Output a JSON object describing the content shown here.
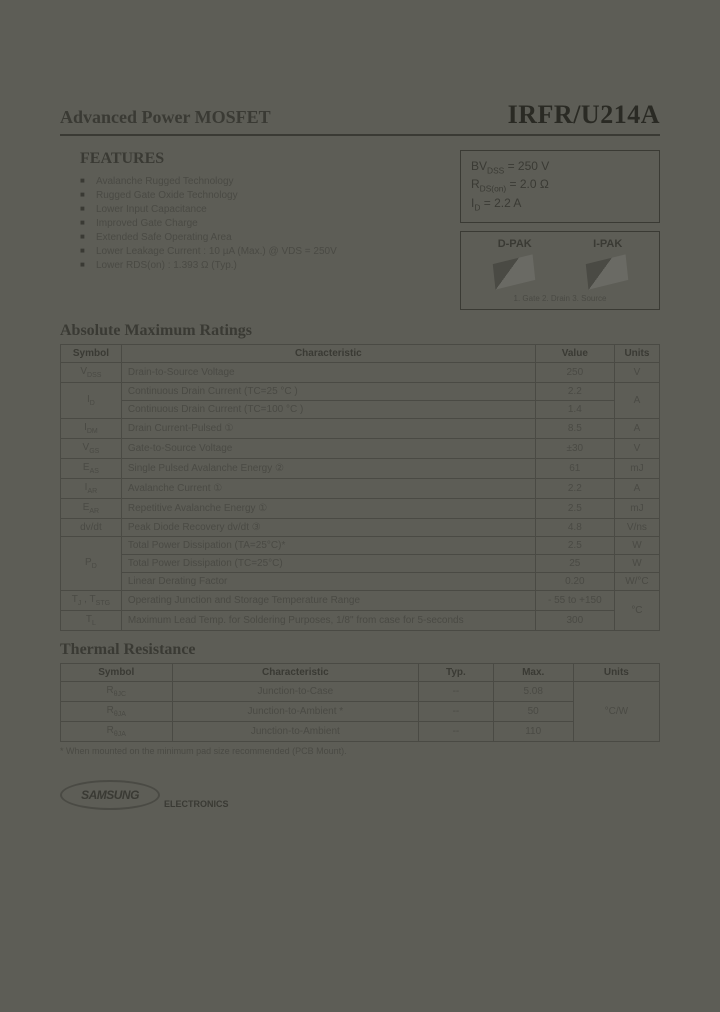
{
  "header": {
    "left": "Advanced Power MOSFET",
    "right": "IRFR/U214A"
  },
  "features": {
    "title": "FEATURES",
    "items": [
      "Avalanche Rugged Technology",
      "Rugged Gate Oxide Technology",
      "Lower Input Capacitance",
      "Improved Gate Charge",
      "Extended Safe Operating Area",
      "Lower Leakage Current : 10 µA (Max.) @ VDS = 250V",
      "Lower RDS(on) : 1.393 Ω (Typ.)"
    ]
  },
  "spec_box": {
    "line1": "BVDSS = 250 V",
    "line2": "RDS(on) = 2.0 Ω",
    "line3": "ID = 2.2 A"
  },
  "package_box": {
    "left_label": "D-PAK",
    "right_label": "I-PAK",
    "pins": "1. Gate 2. Drain 3. Source"
  },
  "abs_max": {
    "title": "Absolute Maximum Ratings",
    "headers": [
      "Symbol",
      "Characteristic",
      "Value",
      "Units"
    ],
    "rows": [
      {
        "sym": "VDSS",
        "char": "Drain-to-Source Voltage",
        "val": "250",
        "unit": "V"
      },
      {
        "sym": "ID",
        "char": "Continuous Drain Current (TC=25 °C )",
        "val": "2.2",
        "unit": "A",
        "rowspan_sym": 2,
        "rowspan_unit": 2
      },
      {
        "char": "Continuous Drain Current (TC=100 °C )",
        "val": "1.4"
      },
      {
        "sym": "IDM",
        "char": "Drain Current-Pulsed                          ①",
        "val": "8.5",
        "unit": "A"
      },
      {
        "sym": "VGS",
        "char": "Gate-to-Source Voltage",
        "val": "±30",
        "unit": "V"
      },
      {
        "sym": "EAS",
        "char": "Single Pulsed Avalanche Energy       ②",
        "val": "61",
        "unit": "mJ"
      },
      {
        "sym": "IAR",
        "char": "Avalanche Current                              ①",
        "val": "2.2",
        "unit": "A"
      },
      {
        "sym": "EAR",
        "char": "Repetitive Avalanche Energy             ①",
        "val": "2.5",
        "unit": "mJ"
      },
      {
        "sym": "dv/dt",
        "char": "Peak Diode Recovery dv/dt                ③",
        "val": "4.8",
        "unit": "V/ns"
      },
      {
        "sym": "PD",
        "char": "Total Power Dissipation (TA=25°C)*",
        "val": "2.5",
        "unit": "W",
        "rowspan_sym": 3
      },
      {
        "char": "Total Power Dissipation (TC=25°C)",
        "val": "25",
        "unit": "W"
      },
      {
        "char": "Linear Derating Factor",
        "val": "0.20",
        "unit": "W/°C"
      },
      {
        "sym": "TJ , TSTG",
        "char": "Operating Junction and Storage Temperature Range",
        "val": "- 55 to +150",
        "unit": "°C",
        "rowspan_unit": 2
      },
      {
        "sym": "TL",
        "char": "Maximum Lead Temp. for Soldering Purposes, 1/8\" from case for 5-seconds",
        "val": "300"
      }
    ]
  },
  "thermal": {
    "title": "Thermal Resistance",
    "headers": [
      "Symbol",
      "Characteristic",
      "Typ.",
      "Max.",
      "Units"
    ],
    "rows": [
      {
        "sym": "RθJC",
        "char": "Junction-to-Case",
        "typ": "--",
        "max": "5.08"
      },
      {
        "sym": "RθJA",
        "char": "Junction-to-Ambient *",
        "typ": "--",
        "max": "50"
      },
      {
        "sym": "RθJA",
        "char": "Junction-to-Ambient",
        "typ": "--",
        "max": "110"
      }
    ],
    "unit": "°C/W",
    "footnote": "* When mounted on the minimum pad size recommended (PCB Mount)."
  },
  "logo": {
    "brand": "SAMSUNG",
    "sub": "ELECTRONICS"
  },
  "colors": {
    "bg": "#5d5d56",
    "text": "#4a4a44",
    "dark": "#3a3a34"
  }
}
